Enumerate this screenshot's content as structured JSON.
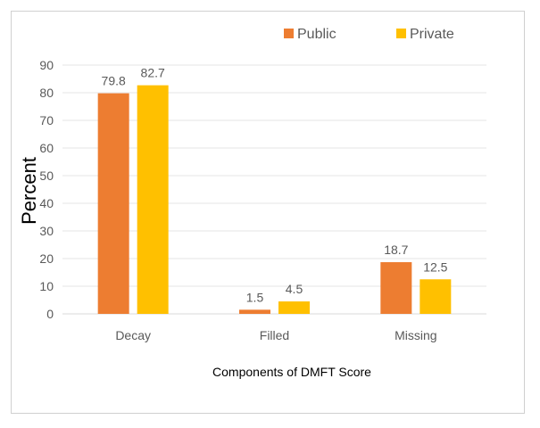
{
  "chart_data": {
    "type": "bar",
    "title": "",
    "categories": [
      "Decay",
      "Filled",
      "Missing"
    ],
    "series": [
      {
        "name": "Public",
        "values": [
          79.8,
          1.5,
          18.7
        ],
        "color": "#ED7D31",
        "labels": [
          "79.8",
          "1.5",
          "18.7"
        ]
      },
      {
        "name": "Private",
        "values": [
          82.7,
          4.5,
          12.5
        ],
        "color": "#FFC000",
        "labels": [
          "82.7",
          "4.5",
          "12.5"
        ]
      }
    ],
    "xlabel": "Components of DMFT Score",
    "ylabel": "Percent",
    "ylim": [
      0,
      90
    ],
    "yticks": [
      "0",
      "10",
      "20",
      "30",
      "40",
      "50",
      "60",
      "70",
      "80",
      "90"
    ],
    "grid": true,
    "legend_position": "top-right"
  }
}
